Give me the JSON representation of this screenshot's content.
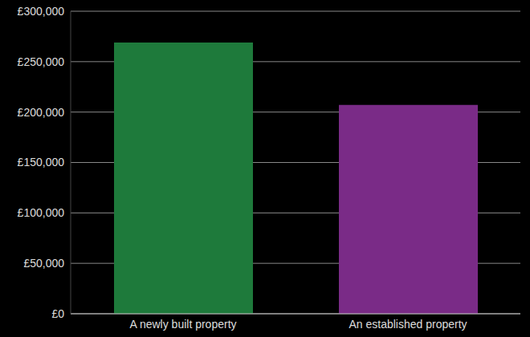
{
  "chart_data": {
    "type": "bar",
    "categories": [
      "A newly built property",
      "An established property"
    ],
    "values": [
      269000,
      207000
    ],
    "colors": [
      "#1e7a3b",
      "#7a2b87"
    ],
    "ylim": [
      0,
      300000
    ],
    "yticks": [
      {
        "value": 0,
        "label": "£0"
      },
      {
        "value": 50000,
        "label": "£50,000"
      },
      {
        "value": 100000,
        "label": "£100,000"
      },
      {
        "value": 150000,
        "label": "£150,000"
      },
      {
        "value": 200000,
        "label": "£200,000"
      },
      {
        "value": 250000,
        "label": "£250,000"
      },
      {
        "value": 300000,
        "label": "£300,000"
      }
    ],
    "grid": true
  }
}
